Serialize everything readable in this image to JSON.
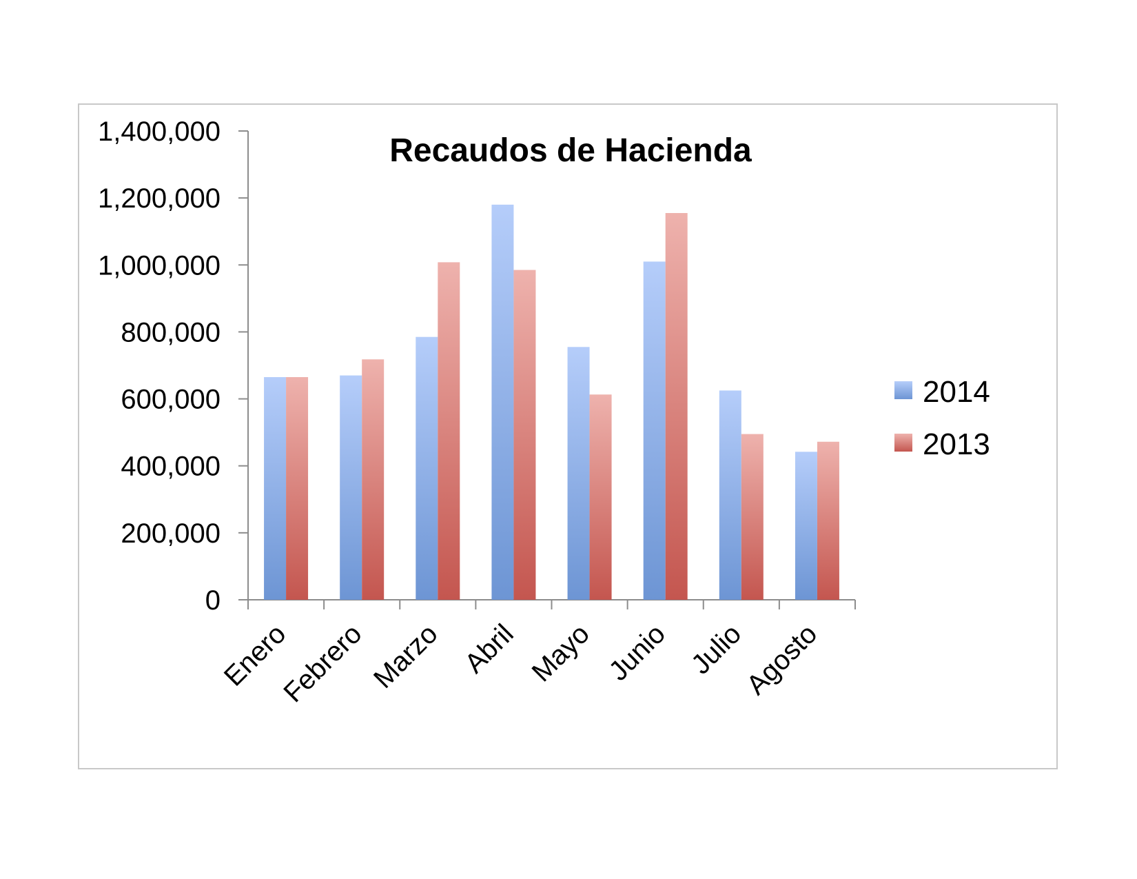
{
  "chart_data": {
    "type": "bar",
    "title": "Recaudos de Hacienda",
    "categories": [
      "Enero",
      "Febrero",
      "Marzo",
      "Abril",
      "Mayo",
      "Junio",
      "Julio",
      "Agosto"
    ],
    "series": [
      {
        "name": "2014",
        "values": [
          665000,
          670000,
          785000,
          1180000,
          755000,
          1010000,
          625000,
          442000
        ],
        "color_light": "#b5cdfa",
        "color_dark": "#6d95d4"
      },
      {
        "name": "2013",
        "values": [
          665000,
          718000,
          1008000,
          985000,
          613000,
          1155000,
          495000,
          472000
        ],
        "color_light": "#eeb2ad",
        "color_dark": "#c4564f"
      }
    ],
    "ylim": [
      0,
      1400000
    ],
    "yticks": [
      {
        "value": 0,
        "label": "0"
      },
      {
        "value": 200000,
        "label": "200,000"
      },
      {
        "value": 400000,
        "label": "400,000"
      },
      {
        "value": 600000,
        "label": "600,000"
      },
      {
        "value": 800000,
        "label": "800,000"
      },
      {
        "value": 1000000,
        "label": "1,000,000"
      },
      {
        "value": 1200000,
        "label": "1,200,000"
      },
      {
        "value": 1400000,
        "label": "1,400,000"
      }
    ],
    "xlabel": "",
    "ylabel": "",
    "grid": false,
    "legend_position": "right"
  }
}
